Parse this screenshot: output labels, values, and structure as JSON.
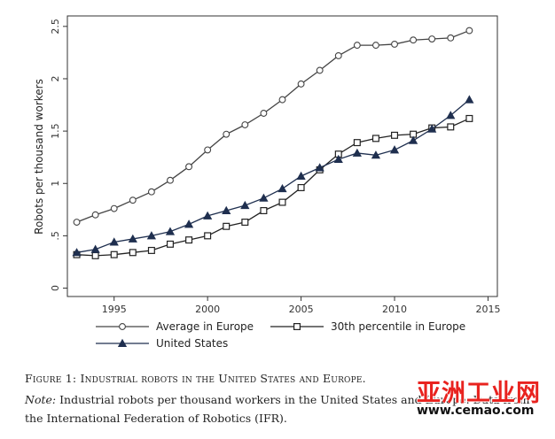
{
  "chart_data": {
    "type": "line",
    "title": "",
    "xlabel": "",
    "ylabel": "Robots per thousand workers",
    "xlim": [
      1992.5,
      2015.5
    ],
    "ylim": [
      -0.08,
      2.6
    ],
    "x_ticks": [
      1995,
      2000,
      2005,
      2010,
      2015
    ],
    "y_ticks": [
      0,
      0.5,
      1,
      1.5,
      2,
      2.5
    ],
    "y_tick_labels": [
      "0",
      ".5",
      "1",
      "1.5",
      "2",
      "2.5"
    ],
    "grid": false,
    "legend_position": "bottom",
    "x": [
      1993,
      1994,
      1995,
      1996,
      1997,
      1998,
      1999,
      2000,
      2001,
      2002,
      2003,
      2004,
      2005,
      2006,
      2007,
      2008,
      2009,
      2010,
      2011,
      2012,
      2013,
      2014
    ],
    "series": [
      {
        "name": "Average in Europe",
        "marker": "circle",
        "color": "#444444",
        "values": [
          0.63,
          0.7,
          0.76,
          0.84,
          0.92,
          1.03,
          1.16,
          1.32,
          1.47,
          1.56,
          1.67,
          1.8,
          1.95,
          2.08,
          2.22,
          2.32,
          2.32,
          2.33,
          2.37,
          2.38,
          2.39,
          2.46
        ]
      },
      {
        "name": "30th percentile in Europe",
        "marker": "square",
        "color": "#222222",
        "values": [
          0.32,
          0.31,
          0.32,
          0.34,
          0.36,
          0.42,
          0.46,
          0.5,
          0.59,
          0.63,
          0.74,
          0.82,
          0.96,
          1.13,
          1.28,
          1.39,
          1.43,
          1.46,
          1.47,
          1.53,
          1.54,
          1.62
        ]
      },
      {
        "name": "United States",
        "marker": "triangle",
        "color": "#1f2f4f",
        "values": [
          0.34,
          0.37,
          0.44,
          0.47,
          0.5,
          0.54,
          0.61,
          0.69,
          0.74,
          0.79,
          0.86,
          0.95,
          1.07,
          1.15,
          1.23,
          1.29,
          1.27,
          1.32,
          1.41,
          1.52,
          1.65,
          1.8
        ]
      }
    ]
  },
  "caption": {
    "title": "Figure 1: Industrial robots in the United States and Europe.",
    "note_label": "Note:",
    "note_text": " Industrial robots per thousand workers in the United States and Europe. Data from the International Federation of Robotics (IFR)."
  },
  "watermark": {
    "brand": "亚洲工业网",
    "url": "www.cemao.com",
    "color": "#e8231f"
  }
}
